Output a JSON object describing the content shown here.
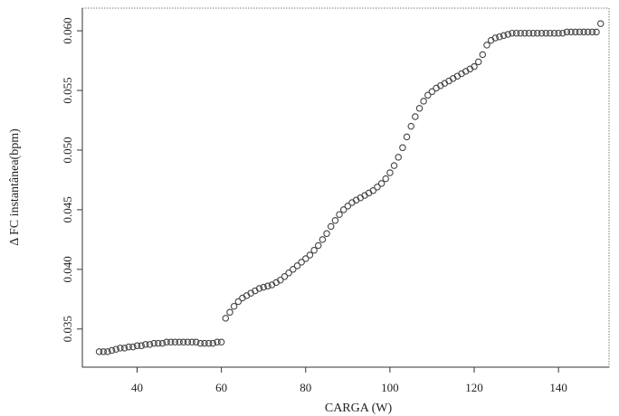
{
  "chart_data": {
    "type": "scatter",
    "title": "",
    "xlabel": "CARGA (W)",
    "ylabel": "Δ FC instantânea(bpm)",
    "xlim": [
      27,
      152
    ],
    "ylim": [
      0.0318,
      0.0619
    ],
    "xticks": [
      40,
      60,
      80,
      100,
      120,
      140
    ],
    "xtick_labels": [
      "40",
      "60",
      "80",
      "100",
      "120",
      "140"
    ],
    "yticks": [
      0.035,
      0.04,
      0.045,
      0.05,
      0.055,
      0.06
    ],
    "ytick_labels": [
      "0.035",
      "0.040",
      "0.045",
      "0.050",
      "0.055",
      "0.060"
    ],
    "grid": false,
    "marker": "open-circle",
    "series": [
      {
        "x": [
          31,
          32,
          33,
          34,
          35,
          36,
          37,
          38,
          39,
          40,
          41,
          42,
          43,
          44,
          45,
          46,
          47,
          48,
          49,
          50,
          51,
          52,
          53,
          54,
          55,
          56,
          57,
          58,
          59,
          60,
          61,
          62,
          63,
          64,
          65,
          66,
          67,
          68,
          69,
          70,
          71,
          72,
          73,
          74,
          75,
          76,
          77,
          78,
          79,
          80,
          81,
          82,
          83,
          84,
          85,
          86,
          87,
          88,
          89,
          90,
          91,
          92,
          93,
          94,
          95,
          96,
          97,
          98,
          99,
          100,
          101,
          102,
          103,
          104,
          105,
          106,
          107,
          108,
          109,
          110,
          111,
          112,
          113,
          114,
          115,
          116,
          117,
          118,
          119,
          120,
          121,
          122,
          123,
          124,
          125,
          126,
          127,
          128,
          129,
          130,
          131,
          132,
          133,
          134,
          135,
          136,
          137,
          138,
          139,
          140,
          141,
          142,
          143,
          144,
          145,
          146,
          147,
          148,
          149,
          150
        ],
        "y": [
          0.0331,
          0.0331,
          0.0331,
          0.0332,
          0.0333,
          0.0334,
          0.0334,
          0.0335,
          0.0335,
          0.0336,
          0.0336,
          0.0337,
          0.0337,
          0.0338,
          0.0338,
          0.0338,
          0.0339,
          0.0339,
          0.0339,
          0.0339,
          0.0339,
          0.0339,
          0.0339,
          0.0339,
          0.0338,
          0.0338,
          0.0338,
          0.0338,
          0.0339,
          0.0339,
          0.0359,
          0.0364,
          0.0369,
          0.0373,
          0.0376,
          0.0378,
          0.038,
          0.0382,
          0.0384,
          0.0385,
          0.0386,
          0.0387,
          0.0389,
          0.0391,
          0.0394,
          0.0397,
          0.04,
          0.0403,
          0.0406,
          0.0409,
          0.0412,
          0.0416,
          0.042,
          0.0425,
          0.043,
          0.0436,
          0.0441,
          0.0446,
          0.045,
          0.0453,
          0.0456,
          0.0458,
          0.046,
          0.0462,
          0.0464,
          0.0466,
          0.0469,
          0.0472,
          0.0476,
          0.0481,
          0.0487,
          0.0494,
          0.0502,
          0.0511,
          0.052,
          0.0528,
          0.0535,
          0.0541,
          0.0546,
          0.0549,
          0.0552,
          0.0554,
          0.0556,
          0.0558,
          0.056,
          0.0562,
          0.0564,
          0.0566,
          0.0568,
          0.057,
          0.0574,
          0.058,
          0.0588,
          0.0592,
          0.0594,
          0.0595,
          0.0596,
          0.0597,
          0.0598,
          0.0598,
          0.0598,
          0.0598,
          0.0598,
          0.0598,
          0.0598,
          0.0598,
          0.0598,
          0.0598,
          0.0598,
          0.0598,
          0.0598,
          0.0599,
          0.0599,
          0.0599,
          0.0599,
          0.0599,
          0.0599,
          0.0599,
          0.0599,
          0.0606
        ]
      }
    ]
  }
}
